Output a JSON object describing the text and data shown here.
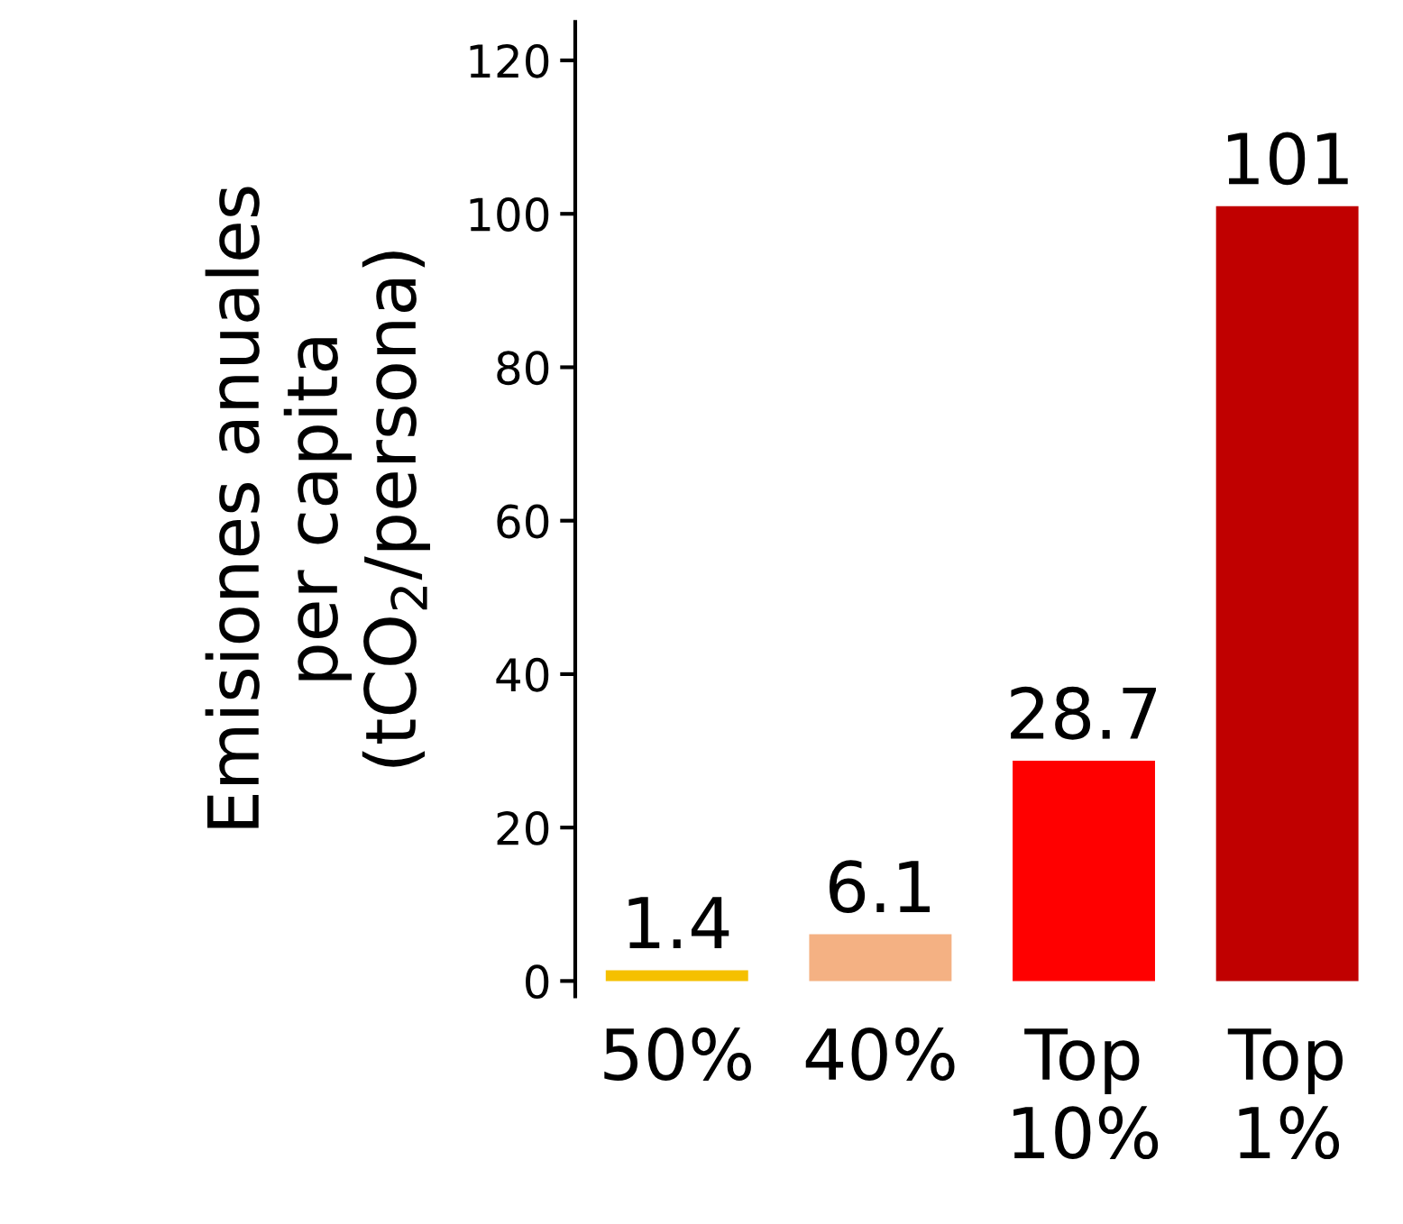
{
  "chart_data": {
    "type": "bar",
    "ylabel": "Emisiones anuales\nper capita\n(tCO$_{2}$/persona)",
    "categories": [
      "50%",
      "40%",
      "Top\n10%",
      "Top\n1%"
    ],
    "values": [
      1.4,
      6.1,
      28.7,
      101
    ],
    "colors": [
      "#f5c000",
      "#f4b183",
      "#ff0000",
      "#c00000"
    ],
    "ylim": [
      -2,
      125
    ],
    "yticks": [
      0,
      20,
      40,
      60,
      80,
      100,
      120
    ],
    "data_labels": true,
    "grid": false,
    "legend": false
  }
}
